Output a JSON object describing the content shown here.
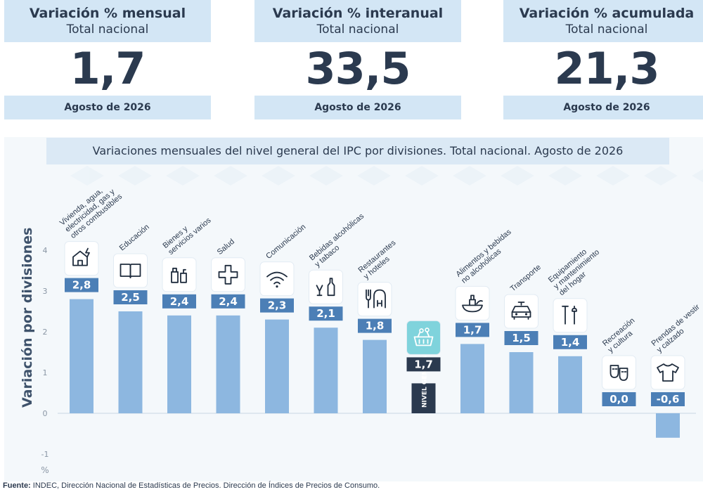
{
  "cards": [
    {
      "title": "Variación % mensual",
      "subtitle": "Total nacional",
      "value": "1,7",
      "period": "Agosto de 2026"
    },
    {
      "title": "Variación % interanual",
      "subtitle": "Total nacional",
      "value": "33,5",
      "period": "Agosto de 2026"
    },
    {
      "title": "Variación % acumulada",
      "subtitle": "Total nacional",
      "value": "21,3",
      "period": "Agosto de 2026"
    }
  ],
  "colors": {
    "bar": "#8db7e0",
    "general_bar": "#2b3a4f",
    "label_bg": "#4c7fb6",
    "panel": "#f4f8fb",
    "header": "#d3e6f5",
    "icon_box_general": "#7fd3dc"
  },
  "chart_data": {
    "type": "bar",
    "title": "Variaciones mensuales del nivel general del IPC por divisiones. Total nacional. Agosto de 2026",
    "ylabel": "Variación por divisiones",
    "unit": "%",
    "ylim": [
      -1,
      4
    ],
    "yticks": [
      "4",
      "3",
      "2",
      "1",
      "0",
      "-1"
    ],
    "grid": false,
    "categories": [
      {
        "lines": [
          "Vivienda, agua,",
          "electricidad, gas y",
          "otros combustibles"
        ],
        "icon": "house-energy-icon"
      },
      {
        "lines": [
          "Educación"
        ],
        "icon": "book-icon"
      },
      {
        "lines": [
          "Bienes y",
          "servicios varios"
        ],
        "icon": "toiletries-icon"
      },
      {
        "lines": [
          "Salud"
        ],
        "icon": "health-cross-icon"
      },
      {
        "lines": [
          "Comunicación"
        ],
        "icon": "wifi-icon"
      },
      {
        "lines": [
          "Bebidas alcohólicas",
          "y tabaco"
        ],
        "icon": "bottle-glass-icon"
      },
      {
        "lines": [
          "Restaurantes",
          "y hoteles"
        ],
        "icon": "cutlery-hotel-icon"
      },
      {
        "lines": [],
        "icon": "shopping-basket-icon",
        "inside_label": "NIVEL GENERAL",
        "general": true
      },
      {
        "lines": [
          "Alimentos y bebidas",
          "no alcohólicas"
        ],
        "icon": "food-icon"
      },
      {
        "lines": [
          "Transporte"
        ],
        "icon": "car-icon"
      },
      {
        "lines": [
          "Equipamiento",
          "y mantenimiento",
          "del hogar"
        ],
        "icon": "tools-icon"
      },
      {
        "lines": [
          "Recreación",
          "y cultura"
        ],
        "icon": "theater-masks-icon"
      },
      {
        "lines": [
          "Prendas de vestir",
          "y calzado"
        ],
        "icon": "tshirt-icon"
      }
    ],
    "values": [
      2.8,
      2.5,
      2.4,
      2.4,
      2.3,
      2.1,
      1.8,
      1.7,
      1.7,
      1.5,
      1.4,
      0.0,
      -0.6
    ],
    "value_labels": [
      "2,8",
      "2,5",
      "2,4",
      "2,4",
      "2,3",
      "2,1",
      "1,8",
      "1,7",
      "1,7",
      "1,5",
      "1,4",
      "0,0",
      "-0,6"
    ]
  },
  "source": {
    "label": "Fuente:",
    "text": " INDEC, Dirección Nacional de Estadísticas de Precios. Dirección de Índices de Precios de Consumo."
  }
}
